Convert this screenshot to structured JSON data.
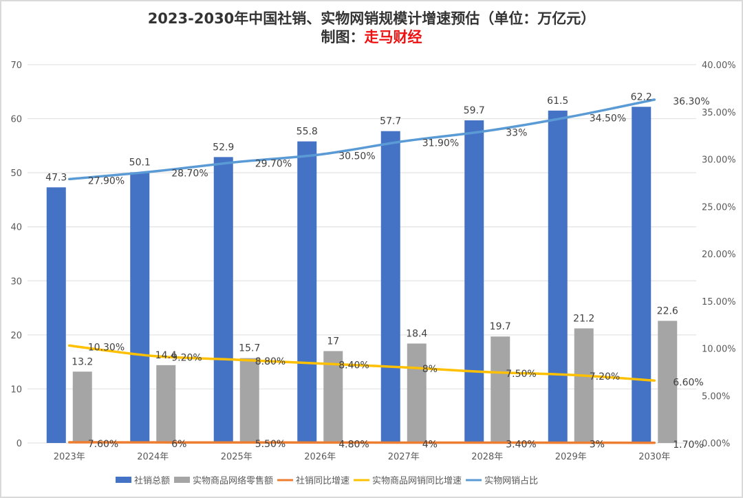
{
  "chart_data": {
    "type": "bar",
    "title": "2023-2030年中国社销、实物网销规模计增速预估（单位：万亿元）",
    "subtitle_prefix": "制图：",
    "subtitle_brand": "走马财经",
    "categories": [
      "2023年",
      "2024年",
      "2025年",
      "2026年",
      "2027年",
      "2028年",
      "2029年",
      "2030年"
    ],
    "left_axis": {
      "min": 0,
      "max": 70,
      "step": 10,
      "ticks": [
        "0",
        "10",
        "20",
        "30",
        "40",
        "50",
        "60",
        "70"
      ]
    },
    "right_axis": {
      "min": 0,
      "max": 40,
      "step": 5,
      "ticks": [
        "0.00%",
        "5.00%",
        "10.00%",
        "15.00%",
        "20.00%",
        "25.00%",
        "30.00%",
        "35.00%",
        "40.00%"
      ]
    },
    "grid": true,
    "legend_position": "bottom",
    "series": [
      {
        "name": "社销总额",
        "kind": "bar",
        "axis": "left",
        "color": "#4472c4",
        "values": [
          47.3,
          50.1,
          52.9,
          55.8,
          57.7,
          59.7,
          61.5,
          62.2
        ],
        "labels": [
          "47.3",
          "50.1",
          "52.9",
          "55.8",
          "57.7",
          "59.7",
          "61.5",
          "62.2"
        ]
      },
      {
        "name": "实物商品网络零售额",
        "kind": "bar",
        "axis": "left",
        "color": "#a5a5a5",
        "values": [
          13.2,
          14.4,
          15.7,
          17,
          18.4,
          19.7,
          21.2,
          22.6
        ],
        "labels": [
          "13.2",
          "14.4",
          "15.7",
          "17",
          "18.4",
          "19.7",
          "21.2",
          "22.6"
        ]
      },
      {
        "name": "社销同比增速",
        "kind": "line",
        "axis": "right",
        "color": "#ed7d31",
        "values": [
          0.076,
          0.06,
          0.055,
          0.048,
          0.04,
          0.034,
          0.03,
          0.017
        ],
        "labels": [
          "7.60%",
          "6%",
          "5.50%",
          "4.80%",
          "4%",
          "3.40%",
          "3%",
          "1.70%"
        ]
      },
      {
        "name": "实物商品网销同比增速",
        "kind": "line",
        "axis": "right",
        "color": "#ffc000",
        "values": [
          10.3,
          9.2,
          8.8,
          8.4,
          8.0,
          7.5,
          7.2,
          6.6
        ],
        "labels": [
          "10.30%",
          "9.20%",
          "8.80%",
          "8.40%",
          "8%",
          "7.50%",
          "7.20%",
          "6.60%"
        ]
      },
      {
        "name": "实物网销占比",
        "kind": "line",
        "axis": "right",
        "color": "#5b9bd5",
        "values": [
          27.9,
          28.7,
          29.7,
          30.5,
          31.9,
          33.0,
          34.5,
          36.3
        ],
        "labels": [
          "27.90%",
          "28.70%",
          "29.70%",
          "30.50%",
          "31.90%",
          "33%",
          "34.50%",
          "36.30%"
        ]
      }
    ]
  }
}
